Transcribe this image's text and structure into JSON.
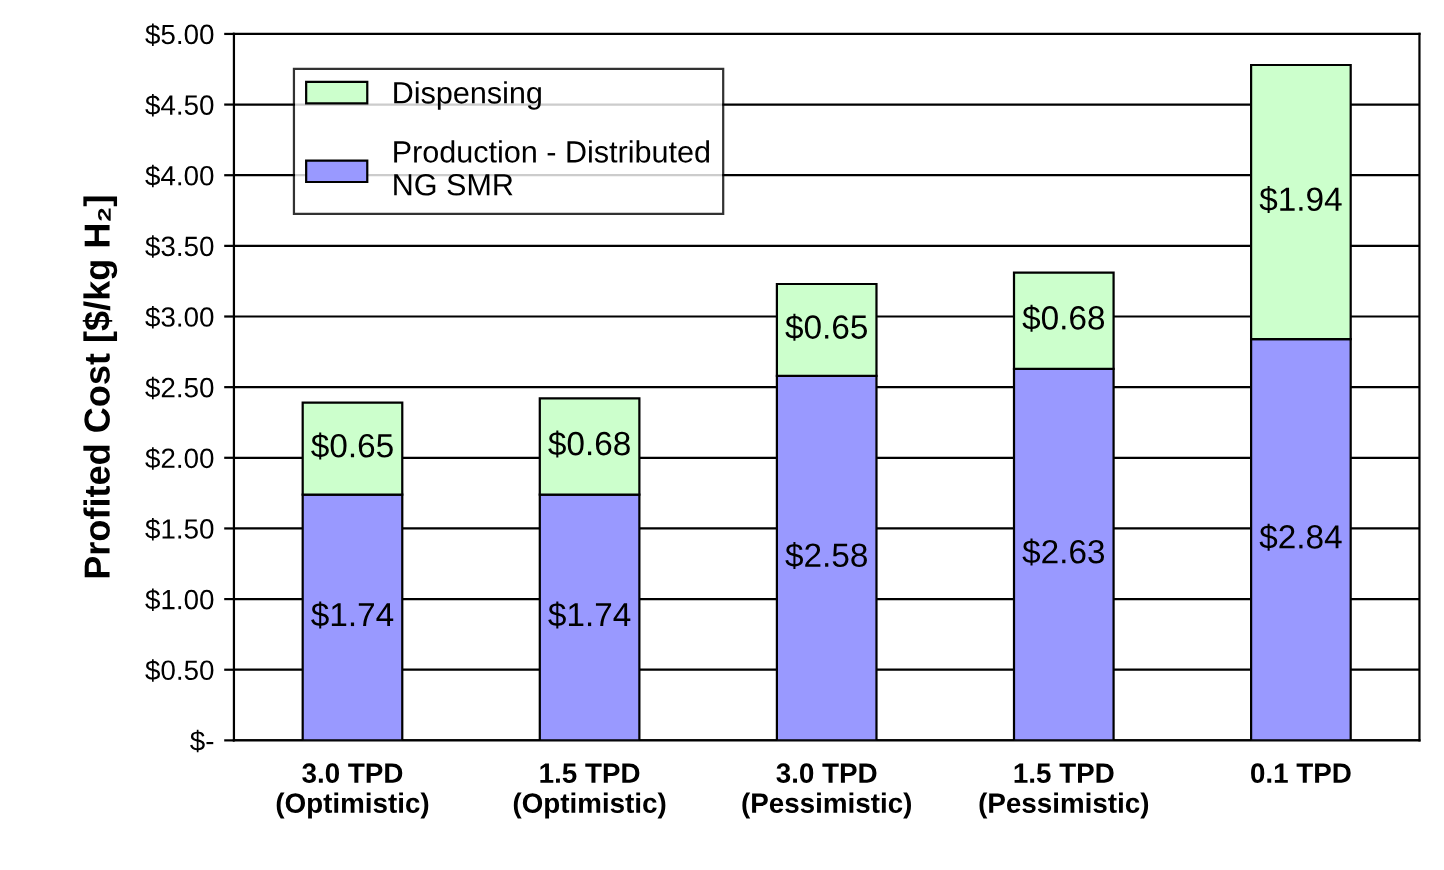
{
  "chart_data": {
    "type": "bar",
    "stacked": true,
    "ylabel": "Profited Cost [$/kg H₂]",
    "categories": [
      "3.0 TPD\n(Optimistic)",
      "1.5 TPD\n(Optimistic)",
      "3.0 TPD\n(Pessimistic)",
      "1.5 TPD\n(Pessimistic)",
      "0.1 TPD"
    ],
    "series": [
      {
        "name": "Production - Distributed\nNG SMR",
        "color": "#9999ff",
        "values": [
          1.74,
          1.74,
          2.58,
          2.63,
          2.84
        ],
        "value_labels": [
          "$1.74",
          "$1.74",
          "$2.58",
          "$2.63",
          "$2.84"
        ]
      },
      {
        "name": "Dispensing",
        "color": "#ccffcc",
        "values": [
          0.65,
          0.68,
          0.65,
          0.68,
          1.94
        ],
        "value_labels": [
          "$0.65",
          "$0.68",
          "$0.65",
          "$0.68",
          "$1.94"
        ]
      }
    ],
    "ylim": [
      0,
      5
    ],
    "yticks": [
      {
        "value": 0,
        "label": "$-"
      },
      {
        "value": 0.5,
        "label": "$0.50"
      },
      {
        "value": 1,
        "label": "$1.00"
      },
      {
        "value": 1.5,
        "label": "$1.50"
      },
      {
        "value": 2,
        "label": "$2.00"
      },
      {
        "value": 2.5,
        "label": "$2.50"
      },
      {
        "value": 3,
        "label": "$3.00"
      },
      {
        "value": 3.5,
        "label": "$3.50"
      },
      {
        "value": 4,
        "label": "$4.00"
      },
      {
        "value": 4.5,
        "label": "$4.50"
      },
      {
        "value": 5,
        "label": "$5.00"
      }
    ],
    "grid": "y",
    "legend": "top left"
  }
}
